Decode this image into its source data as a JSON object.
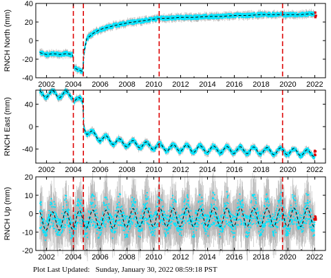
{
  "footer": {
    "label": "Plot Last Updated:",
    "timestamp": "Sunday, January 30, 2022 08:59:18 PST"
  },
  "colors": {
    "scatter": "#00e5ff",
    "error_bars": "#b4b4b4",
    "model": "#000000",
    "break_lines": "#dd0000",
    "recent": "#dd0000"
  },
  "chart_data": [
    {
      "type": "scatter",
      "ylabel": "RNCH North (mm)",
      "xlim": [
        2001.2,
        2022.8
      ],
      "ylim": [
        -40,
        40
      ],
      "x_ticks": [
        2002,
        2004,
        2006,
        2008,
        2010,
        2012,
        2014,
        2016,
        2018,
        2020,
        2022
      ],
      "y_ticks": [
        -40,
        -20,
        0,
        20,
        40
      ],
      "break_lines": [
        2004.0,
        2004.75,
        2010.4,
        2019.6
      ],
      "model_line_style": "dashed",
      "series": [
        {
          "x": [
            2001.5,
            2002.0,
            2002.5,
            2003.0,
            2003.5,
            2003.95,
            2004.05,
            2004.4,
            2004.7,
            2004.8,
            2005.0,
            2005.5,
            2006.0,
            2006.5,
            2007.0,
            2008.0,
            2009.0,
            2010.0,
            2010.4,
            2011.0,
            2012.0,
            2013.0,
            2014.0,
            2015.0,
            2016.0,
            2017.0,
            2018.0,
            2019.0,
            2019.6,
            2020.0,
            2021.0,
            2021.7,
            2022.0
          ],
          "y": [
            -13,
            -15,
            -14,
            -15,
            -14,
            -15,
            -29,
            -32,
            -33,
            -12,
            2,
            8,
            12,
            14,
            16,
            19,
            21,
            23,
            24,
            24,
            25,
            25,
            26,
            26,
            27,
            27,
            28,
            28,
            28,
            28,
            28,
            29,
            28
          ]
        }
      ]
    },
    {
      "type": "scatter",
      "ylabel": "RNCH East (mm)",
      "xlim": [
        2001.2,
        2022.8
      ],
      "ylim": [
        -65,
        65
      ],
      "x_ticks": [
        2002,
        2004,
        2006,
        2008,
        2010,
        2012,
        2014,
        2016,
        2018,
        2020,
        2022
      ],
      "y_ticks": [
        -40,
        0,
        40
      ],
      "break_lines": [
        2004.0,
        2004.75,
        2010.4,
        2019.6
      ],
      "model_line_style": "dashed",
      "seasonal_amplitude_mm": 6,
      "series": [
        {
          "x": [
            2001.5,
            2002.5,
            2003.5,
            2003.95,
            2004.05,
            2004.5,
            2004.7,
            2004.8,
            2005.0,
            2005.5,
            2006.0,
            2007.0,
            2008.0,
            2009.0,
            2010.0,
            2011.0,
            2012.0,
            2013.0,
            2014.0,
            2015.0,
            2016.0,
            2017.0,
            2018.0,
            2019.0,
            2020.0,
            2021.0,
            2021.7,
            2022.0
          ],
          "y": [
            58,
            58,
            57,
            57,
            50,
            45,
            44,
            0,
            -8,
            -15,
            -20,
            -26,
            -30,
            -32,
            -35,
            -38,
            -38,
            -40,
            -40,
            -41,
            -42,
            -42,
            -43,
            -44,
            -44,
            -46,
            -48,
            -47
          ]
        }
      ]
    },
    {
      "type": "scatter",
      "ylabel": "RNCH Up (mm)",
      "xlim": [
        2001.2,
        2022.8
      ],
      "ylim": [
        -20,
        20
      ],
      "x_ticks": [
        2002,
        2004,
        2006,
        2008,
        2010,
        2012,
        2014,
        2016,
        2018,
        2020,
        2022
      ],
      "y_ticks": [
        -20,
        -10,
        0,
        10,
        20
      ],
      "break_lines": [
        2004.0,
        2004.75,
        2010.4,
        2019.6
      ],
      "model_line_style": "dashed",
      "seasonal_amplitude_mm": 5,
      "series": [
        {
          "x": [
            2001.5,
            2003.0,
            2005.0,
            2007.0,
            2009.0,
            2011.0,
            2013.0,
            2015.0,
            2017.0,
            2019.0,
            2021.0,
            2022.0
          ],
          "y": [
            -4,
            -4,
            -3,
            -3,
            -2,
            -2,
            -2,
            -2,
            -2,
            -2,
            -2,
            -2
          ]
        }
      ]
    }
  ]
}
